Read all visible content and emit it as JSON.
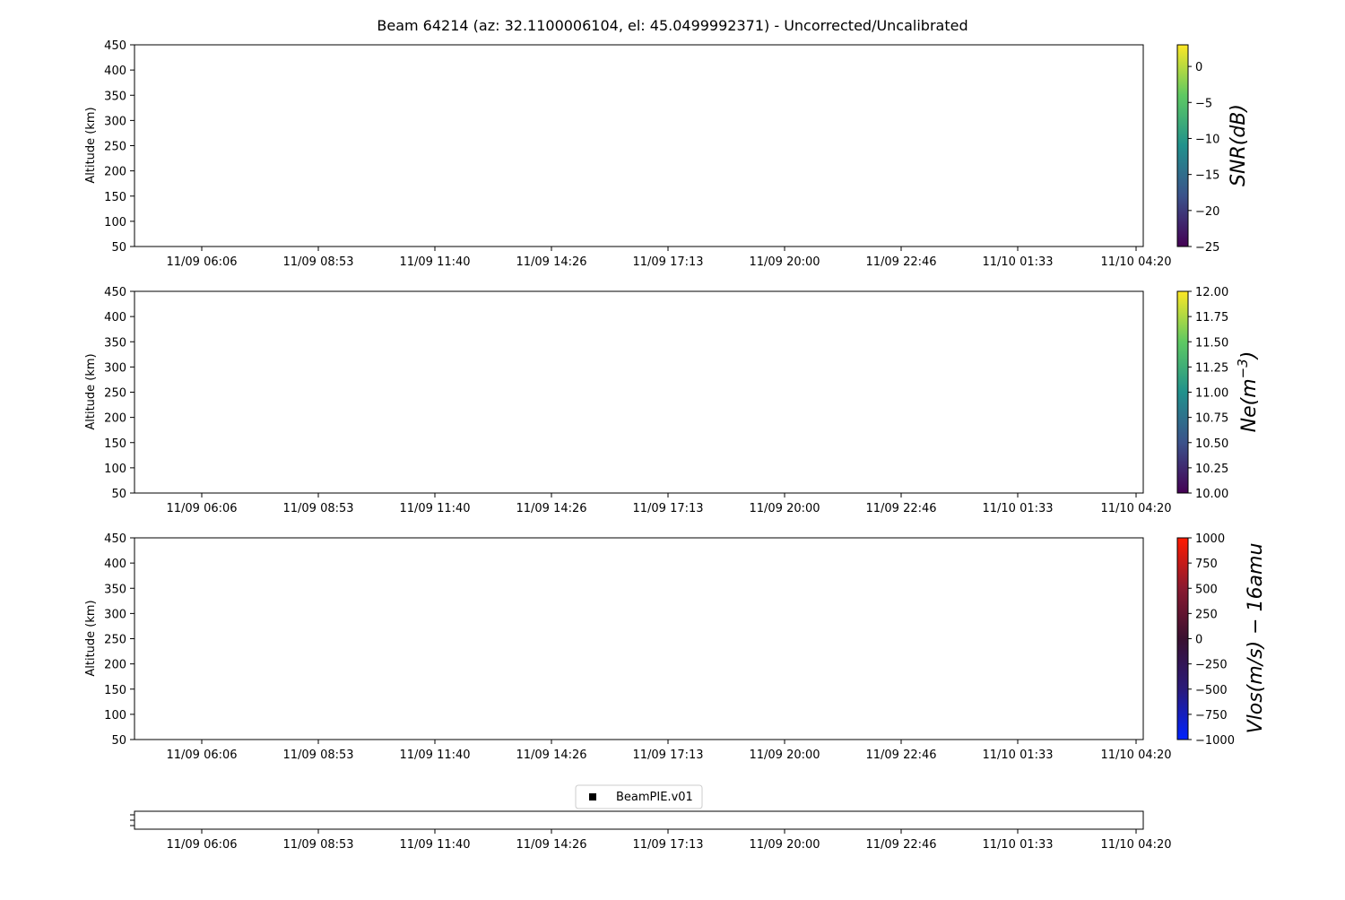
{
  "chart_data": {
    "title": "Beam 64214 (az: 32.1100006104, el: 45.0499992371) - Uncorrected/Uncalibrated",
    "x_tick_labels": [
      "11/09 06:06",
      "11/09 08:53",
      "11/09 11:40",
      "11/09 14:26",
      "11/09 17:13",
      "11/09 20:00",
      "11/09 22:46",
      "11/10 01:33",
      "11/10 04:20"
    ],
    "panels": [
      {
        "type": "heatmap",
        "ylabel": "Altitude (km)",
        "ylim": [
          50,
          450
        ],
        "yticks": [
          50,
          100,
          150,
          200,
          250,
          300,
          350,
          400,
          450
        ],
        "values": [],
        "colorbar": {
          "label": "SNR(dB)",
          "label_sup": "",
          "label_tail": "",
          "colormap": "viridis",
          "range": [
            -25,
            3
          ],
          "ticks": [
            0,
            -5,
            -10,
            -15,
            -20,
            -25
          ],
          "tick_labels": [
            "0",
            "−5",
            "−10",
            "−15",
            "−20",
            "−25"
          ]
        }
      },
      {
        "type": "heatmap",
        "ylabel": "Altitude (km)",
        "ylim": [
          50,
          450
        ],
        "yticks": [
          50,
          100,
          150,
          200,
          250,
          300,
          350,
          400,
          450
        ],
        "values": [],
        "colorbar": {
          "label": "Ne(m",
          "label_sup": "−3",
          "label_tail": ")",
          "colormap": "viridis",
          "range": [
            10,
            12
          ],
          "ticks": [
            12,
            11.75,
            11.5,
            11.25,
            11,
            10.75,
            10.5,
            10.25,
            10
          ],
          "tick_labels": [
            "12.00",
            "11.75",
            "11.50",
            "11.25",
            "11.00",
            "10.75",
            "10.50",
            "10.25",
            "10.00"
          ]
        }
      },
      {
        "type": "heatmap",
        "ylabel": "Altitude (km)",
        "ylim": [
          50,
          450
        ],
        "yticks": [
          50,
          100,
          150,
          200,
          250,
          300,
          350,
          400,
          450
        ],
        "values": [],
        "colorbar": {
          "label": "Vlos(m/s) − 16amu",
          "label_sup": "",
          "label_tail": "",
          "colormap": "blue-black-red",
          "range": [
            -1000,
            1000
          ],
          "ticks": [
            1000,
            750,
            500,
            250,
            0,
            -250,
            -500,
            -750,
            -1000
          ],
          "tick_labels": [
            "1000",
            "750",
            "500",
            "250",
            "0",
            "−250",
            "−500",
            "−750",
            "−1000"
          ]
        }
      }
    ],
    "legend": {
      "entries": [
        "BeamPIE.v01"
      ],
      "marker": "square",
      "color": "#000000",
      "placement": "top-center"
    },
    "grid": false
  }
}
